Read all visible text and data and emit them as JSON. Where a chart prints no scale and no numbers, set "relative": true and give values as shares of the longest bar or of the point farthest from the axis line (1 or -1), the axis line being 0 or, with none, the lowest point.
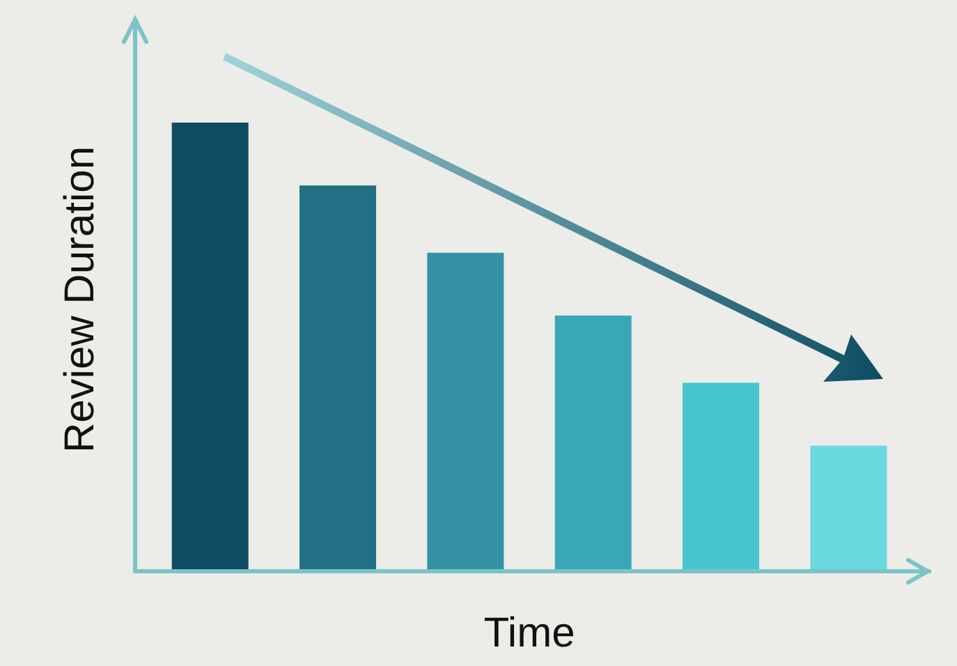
{
  "chart_data": {
    "type": "bar",
    "relative": true,
    "xlabel": "Time",
    "ylabel": "Review Duration",
    "categories": [
      null,
      null,
      null,
      null,
      null,
      null
    ],
    "values": [
      1,
      0.86,
      0.71,
      0.57,
      0.42,
      0.28
    ],
    "colors": [
      "#0e4d62",
      "#236f84",
      "#3592a5",
      "#3aa7b8",
      "#48c4cf",
      "#6ad9e0"
    ],
    "legend": false
  }
}
